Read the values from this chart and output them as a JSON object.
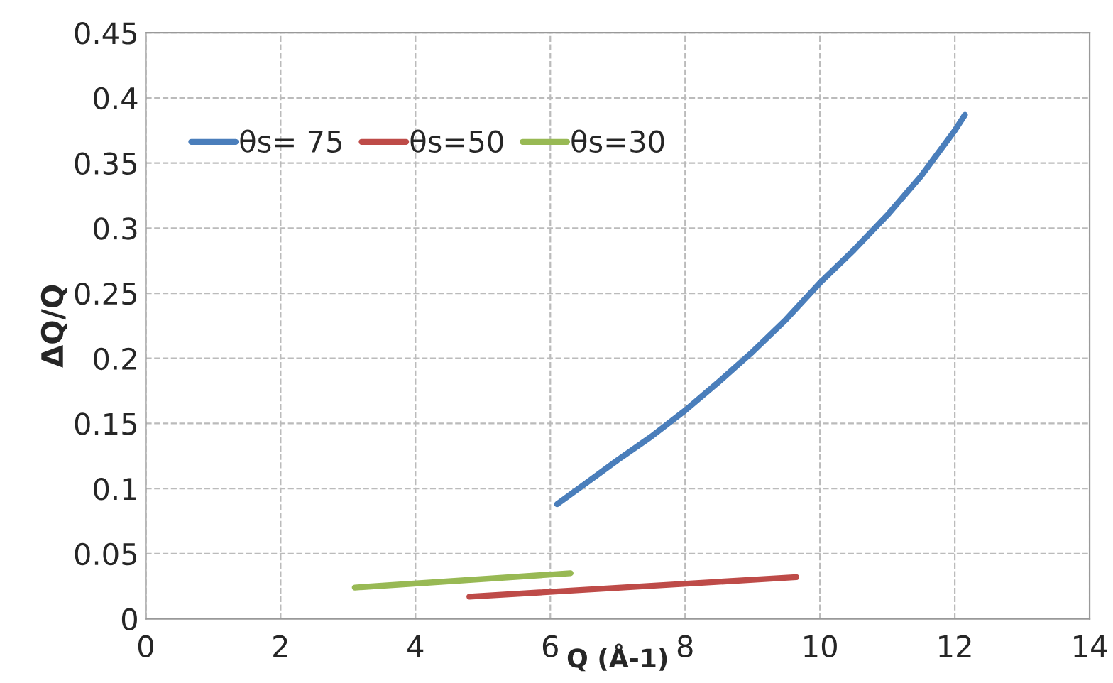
{
  "chart_data": {
    "type": "line",
    "xlabel": "Q (Å-1)",
    "ylabel": "ΔQ/Q",
    "series": [
      {
        "name": "θs= 75",
        "color": "#4a7ebb",
        "x": [
          6.1,
          6.5,
          7,
          7.5,
          8,
          8.5,
          9,
          9.5,
          10,
          10.5,
          11,
          11.5,
          12,
          12.15
        ],
        "values": [
          0.088,
          0.103,
          0.122,
          0.14,
          0.16,
          0.182,
          0.205,
          0.23,
          0.258,
          0.283,
          0.31,
          0.34,
          0.375,
          0.387
        ]
      },
      {
        "name": "θs=50",
        "color": "#be4b48",
        "x": [
          4.8,
          9.65
        ],
        "values": [
          0.017,
          0.032
        ]
      },
      {
        "name": "θs=30",
        "color": "#98b954",
        "x": [
          3.1,
          6.3
        ],
        "values": [
          0.024,
          0.035
        ]
      }
    ],
    "xlim": [
      0,
      14
    ],
    "xticks": [
      0,
      2,
      4,
      6,
      8,
      10,
      12,
      14
    ],
    "ylim": [
      0,
      0.45
    ],
    "yticks": [
      0,
      0.05,
      0.1,
      0.15,
      0.2,
      0.25,
      0.3,
      0.35,
      0.4,
      0.45
    ],
    "grid": true,
    "legend": "top left",
    "marker": "none",
    "line_style": "solid"
  }
}
